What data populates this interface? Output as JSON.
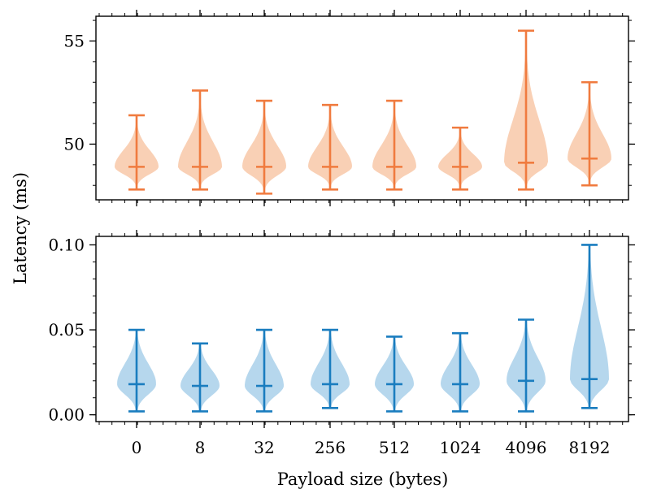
{
  "chart_data": [
    {
      "type": "violin",
      "panel": "top",
      "color": "#f07b3f",
      "fill_color": "#f8c8a8",
      "categories": [
        "0",
        "8",
        "32",
        "256",
        "512",
        "1024",
        "4096",
        "8192"
      ],
      "min": [
        47.8,
        47.8,
        47.6,
        47.8,
        47.8,
        47.8,
        47.8,
        48.0
      ],
      "median": [
        48.9,
        48.9,
        48.9,
        48.9,
        48.9,
        48.9,
        49.1,
        49.3
      ],
      "max": [
        51.4,
        52.6,
        52.1,
        51.9,
        52.1,
        50.8,
        55.5,
        53.0
      ],
      "ylim": [
        47.3,
        56.2
      ],
      "yticks": [
        50,
        55
      ],
      "ytick_labels": [
        "50",
        "55"
      ],
      "ylabel": ""
    },
    {
      "type": "violin",
      "panel": "bottom",
      "color": "#1a7dbf",
      "fill_color": "#a9d0ea",
      "categories": [
        "0",
        "8",
        "32",
        "256",
        "512",
        "1024",
        "4096",
        "8192"
      ],
      "min": [
        0.002,
        0.002,
        0.002,
        0.004,
        0.002,
        0.002,
        0.002,
        0.004
      ],
      "median": [
        0.018,
        0.017,
        0.017,
        0.018,
        0.018,
        0.018,
        0.02,
        0.021
      ],
      "max": [
        0.05,
        0.042,
        0.05,
        0.05,
        0.046,
        0.048,
        0.056,
        0.1
      ],
      "ylim": [
        -0.004,
        0.105
      ],
      "yticks": [
        0.0,
        0.05,
        0.1
      ],
      "ytick_labels": [
        "0.00",
        "0.05",
        "0.10"
      ],
      "ylabel": ""
    }
  ],
  "axes": {
    "shared_ylabel": "Latency (ms)",
    "xlabel": "Payload size (bytes)",
    "xtick_labels": [
      "0",
      "8",
      "32",
      "256",
      "512",
      "1024",
      "4096",
      "8192"
    ]
  }
}
